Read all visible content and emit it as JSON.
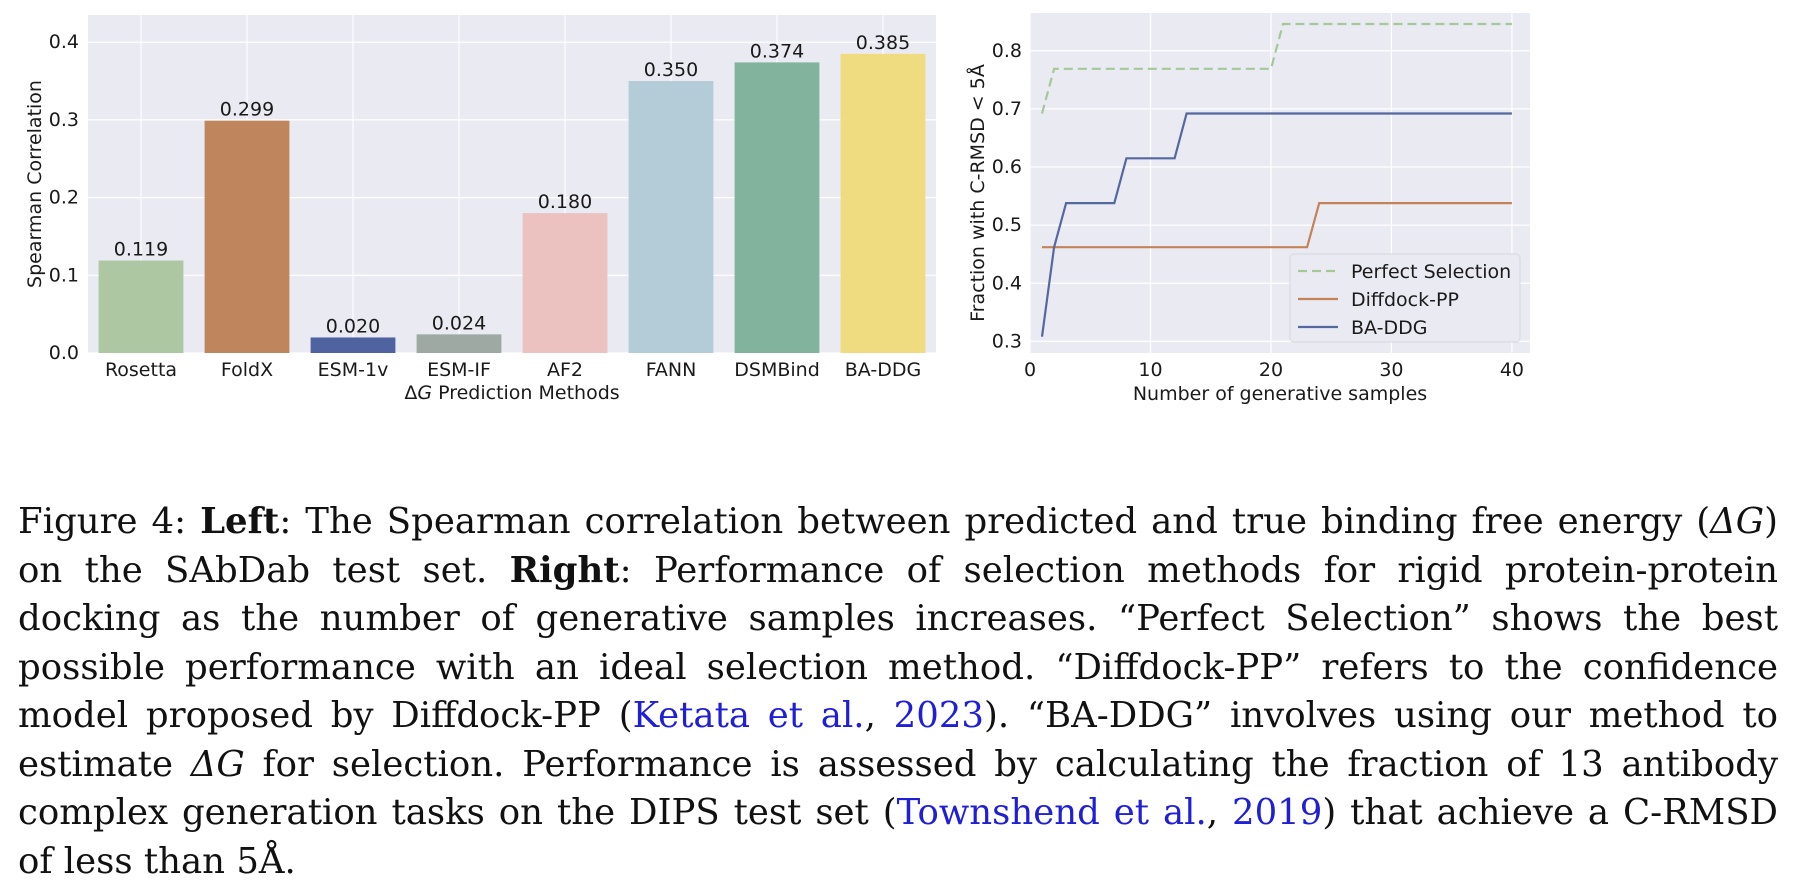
{
  "chart_data": [
    {
      "type": "bar",
      "xlabel": "ΔG Prediction Methods",
      "ylabel": "Spearman Correlation",
      "categories": [
        "Rosetta",
        "FoldX",
        "ESM-1v",
        "ESM-IF",
        "AF2",
        "FANN",
        "DSMBind",
        "BA-DDG"
      ],
      "values": [
        0.119,
        0.299,
        0.02,
        0.024,
        0.18,
        0.35,
        0.374,
        0.385
      ],
      "value_labels": [
        "0.119",
        "0.299",
        "0.020",
        "0.024",
        "0.180",
        "0.350",
        "0.374",
        "0.385"
      ],
      "colors": [
        "#adc7a3",
        "#bf855c",
        "#4f63a0",
        "#9ea9a4",
        "#ebc2c0",
        "#b4cbd8",
        "#82b39d",
        "#efdc80"
      ],
      "yticks": [
        "0.0",
        "0.1",
        "0.2",
        "0.3",
        "0.4"
      ],
      "ylim": [
        0,
        0.435
      ],
      "grid": true
    },
    {
      "type": "line",
      "xlabel": "Number of generative samples",
      "ylabel": "Fraction with C-RMSD < 5Å",
      "xlim": [
        0,
        41.5
      ],
      "ylim": [
        0.28,
        0.865
      ],
      "xticks": [
        "0",
        "10",
        "20",
        "30",
        "40"
      ],
      "yticks": [
        "0.3",
        "0.4",
        "0.5",
        "0.6",
        "0.7",
        "0.8"
      ],
      "legend_position": "lower-right",
      "grid": true,
      "series": [
        {
          "name": "Perfect Selection",
          "color": "#a6c799",
          "dash": true,
          "points": [
            [
              1,
              0.692
            ],
            [
              2,
              0.769
            ],
            [
              20,
              0.769
            ],
            [
              21,
              0.846
            ],
            [
              40,
              0.846
            ]
          ]
        },
        {
          "name": "Diffdock-PP",
          "color": "#c38257",
          "dash": false,
          "points": [
            [
              1,
              0.462
            ],
            [
              23,
              0.462
            ],
            [
              24,
              0.538
            ],
            [
              40,
              0.538
            ]
          ]
        },
        {
          "name": "BA-DDG",
          "color": "#55689e",
          "dash": false,
          "points": [
            [
              1,
              0.308
            ],
            [
              2,
              0.462
            ],
            [
              3,
              0.538
            ],
            [
              7,
              0.538
            ],
            [
              8,
              0.615
            ],
            [
              12,
              0.615
            ],
            [
              13,
              0.692
            ],
            [
              40,
              0.692
            ]
          ]
        }
      ]
    }
  ],
  "caption": {
    "figure_label": "Figure 4:",
    "left_label": "Left",
    "text1": ": The Spearman correlation between predicted and true binding free energy (",
    "delta_g": "ΔG",
    "text2": ") on the SAbDab test set. ",
    "right_label": "Right",
    "text3": ": Performance of selection methods for rigid protein-protein docking as the number of generative samples increases. “Perfect Selection” shows the best possible performance with an ideal selection method. “Diffdock-PP” refers to the confidence model proposed by Diffdock-PP (",
    "cite1_author": "Ketata et al.",
    "cite1_sep": ", ",
    "cite1_year": "2023",
    "text4": "). “BA-DDG” involves using our method to estimate ",
    "delta_g2": "ΔG",
    "text5": " for selection. Performance is assessed by calculating the fraction of 13 antibody complex generation tasks on the DIPS test set (",
    "cite2_author": "Townshend et al.",
    "cite2_sep": ", ",
    "cite2_year": "2019",
    "text6": ") that achieve a C-RMSD of less than 5Å."
  }
}
